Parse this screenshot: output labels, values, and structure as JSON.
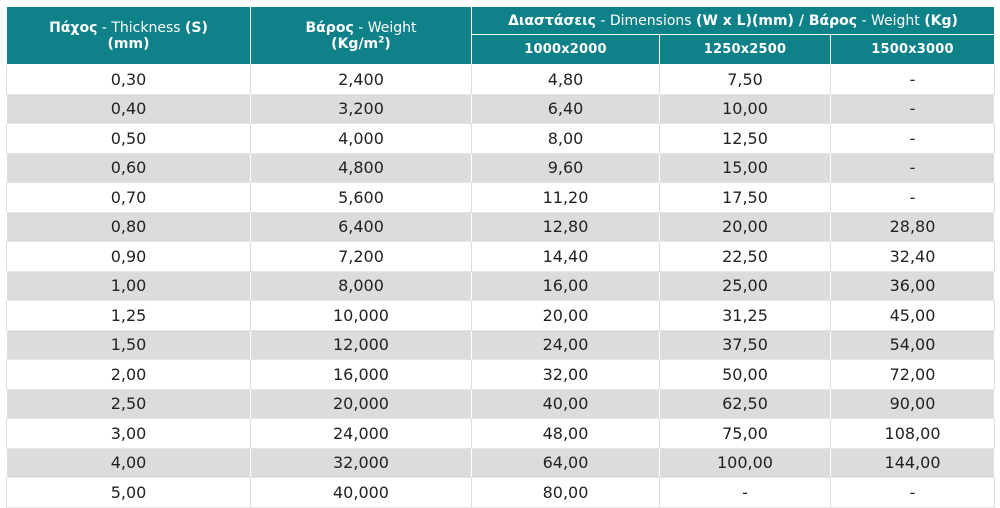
{
  "table": {
    "header": {
      "thickness_gr": "Πάχος",
      "thickness_en": " - Thickness ",
      "thickness_sym": "(S)",
      "thickness_unit": "(mm)",
      "weight_gr": "Βάρος",
      "weight_en": " - Weight",
      "weight_unit_open": "(Kg/m",
      "weight_unit_sup": "2",
      "weight_unit_close": ")",
      "dims_gr": "Διαστάσεις",
      "dims_en": " - Dimensions ",
      "dims_wl": "(W x L)(mm) / Βάρος",
      "dims_weight_en": " - Weight ",
      "dims_kg": "(Kg)",
      "sizes": [
        "1000x2000",
        "1250x2500",
        "1500x3000"
      ]
    },
    "rows": [
      [
        "0,30",
        "2,400",
        "4,80",
        "7,50",
        "-"
      ],
      [
        "0,40",
        "3,200",
        "6,40",
        "10,00",
        "-"
      ],
      [
        "0,50",
        "4,000",
        "8,00",
        "12,50",
        "-"
      ],
      [
        "0,60",
        "4,800",
        "9,60",
        "15,00",
        "-"
      ],
      [
        "0,70",
        "5,600",
        "11,20",
        "17,50",
        "-"
      ],
      [
        "0,80",
        "6,400",
        "12,80",
        "20,00",
        "28,80"
      ],
      [
        "0,90",
        "7,200",
        "14,40",
        "22,50",
        "32,40"
      ],
      [
        "1,00",
        "8,000",
        "16,00",
        "25,00",
        "36,00"
      ],
      [
        "1,25",
        "10,000",
        "20,00",
        "31,25",
        "45,00"
      ],
      [
        "1,50",
        "12,000",
        "24,00",
        "37,50",
        "54,00"
      ],
      [
        "2,00",
        "16,000",
        "32,00",
        "50,00",
        "72,00"
      ],
      [
        "2,50",
        "20,000",
        "40,00",
        "62,50",
        "90,00"
      ],
      [
        "3,00",
        "24,000",
        "48,00",
        "75,00",
        "108,00"
      ],
      [
        "4,00",
        "32,000",
        "64,00",
        "100,00",
        "144,00"
      ],
      [
        "5,00",
        "40,000",
        "80,00",
        "-",
        "-"
      ]
    ]
  }
}
